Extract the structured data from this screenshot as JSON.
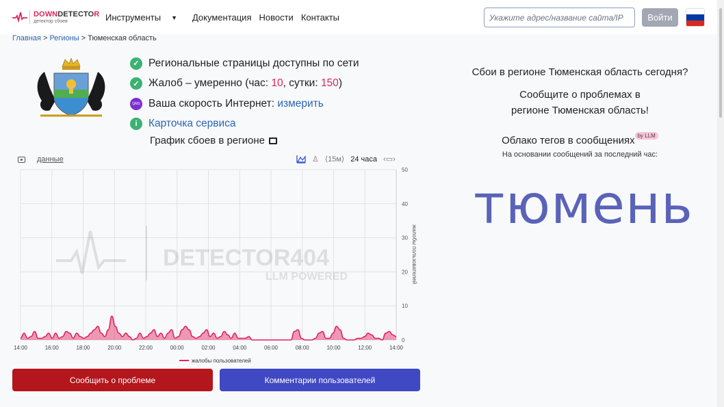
{
  "header": {
    "logo": {
      "main_part1": "DOWN",
      "main_part2": "DETECTO",
      "main_part3": "R",
      "sub": "детектор сбоев"
    },
    "nav": [
      "Инструменты",
      "Документация",
      "Новости",
      "Контакты"
    ],
    "search_placeholder": "Укажите адрес/название сайта/IP",
    "login_label": "Войти",
    "flag_colors": [
      "#ffffff",
      "#0039a6",
      "#d52b1e"
    ]
  },
  "breadcrumb": {
    "home": "Главная",
    "regions": "Регионы",
    "current": "Тюменская область",
    "sep": ">"
  },
  "status": {
    "line1": "Региональные страницы доступны по сети",
    "line2_prefix": "Жалоб – умеренно (час: ",
    "hour_count": "10",
    "line2_mid": ", сутки: ",
    "day_count": "150",
    "line2_suffix": ")",
    "line3_prefix": "Ваша скорость Интернет: ",
    "line3_link": "измерить",
    "qms_label": "QMS",
    "line4_link": "Карточка сервиса"
  },
  "chart_title": "График сбоев в регионе",
  "chart_tools": {
    "data_label": "данные",
    "interval": "⟨15м⟩",
    "range": "24 часа"
  },
  "chart_data": {
    "type": "area",
    "watermark_main": "DETECTOR404",
    "watermark_sub": "LLM POWERED",
    "ylabel": "жалобы пользователей",
    "legend": "жалобы пользователей",
    "ylim": [
      0,
      50
    ],
    "yticks": [
      0,
      10,
      20,
      30,
      40,
      50
    ],
    "xticks": [
      "14:00",
      "16:00",
      "18:00",
      "20:00",
      "22:00",
      "00:00",
      "02:00",
      "04:00",
      "06:00",
      "08:00",
      "10:00",
      "12:00",
      "14:00"
    ],
    "series": [
      {
        "color": "#e0245e",
        "values": [
          0.5,
          2,
          0.5,
          1,
          2.5,
          0.5,
          0.5,
          1,
          2,
          0.5,
          2,
          0.5,
          1,
          2.5,
          2,
          0.5,
          2,
          1,
          0.5,
          1,
          2,
          3,
          4,
          2,
          1,
          3,
          7,
          4,
          2,
          1,
          2,
          1,
          0,
          0.5,
          2,
          0.5,
          1,
          2,
          3,
          1,
          2,
          0.5,
          2,
          3,
          0.5,
          1,
          3,
          4,
          3,
          1,
          0.5,
          1,
          2,
          3,
          1,
          2,
          0.5,
          1,
          2.5,
          1.5,
          0.5,
          2,
          0.5,
          0.5,
          0.5,
          1,
          0,
          0,
          0,
          0,
          0,
          0,
          0,
          0,
          0,
          0,
          0,
          0,
          2.5,
          3,
          0.5,
          0,
          0,
          0,
          0.5,
          2,
          2.5,
          0.5,
          0.5,
          2,
          4,
          3,
          0.5,
          0,
          0,
          0,
          0.5,
          0.5,
          1,
          2,
          1.5,
          0.5,
          0.5,
          0,
          2,
          2.5,
          1.5,
          1
        ]
      }
    ]
  },
  "buttons": {
    "report": "Сообщить о проблеме",
    "comments": "Комментарии пользователей"
  },
  "right": {
    "question": "Сбои в регионе Тюменская область сегодня?",
    "report_line1": "Сообщите о проблемах в",
    "report_line2": "регионе Тюменская область!",
    "cloud_title": "Облако тегов в сообщениях",
    "llm_badge": "by LLM",
    "cloud_sub": "На основании сообщений за последний час:",
    "tag": "тюмень"
  }
}
